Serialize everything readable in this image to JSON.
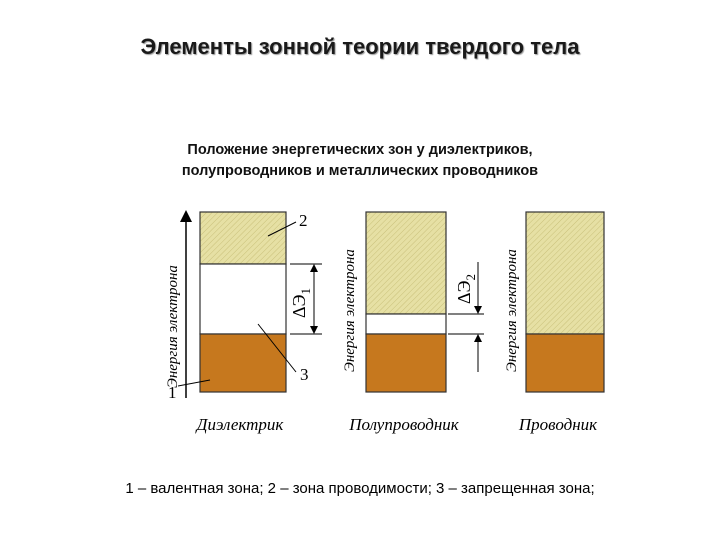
{
  "title": "Элементы зонной теории твердого тела",
  "subtitle_lines": [
    "Положение энергетических зон у диэлектриков,",
    "полупроводников и металлических проводников"
  ],
  "axis_label": "Энергия электрона",
  "diagrams": [
    {
      "caption": "Диэлектрик",
      "gap_label": "ΔЭ",
      "gap_index": "1"
    },
    {
      "caption": "Полупроводник",
      "gap_label": "ΔЭ",
      "gap_index": "2"
    },
    {
      "caption": "Проводник"
    }
  ],
  "callouts": {
    "one": "1",
    "two": "2",
    "three": "3"
  },
  "legend": "1 – валентная зона; 2 – зона проводимости; 3 – запрещенная зона;",
  "colors": {
    "conduction_band": "#e6e0a4",
    "valence_band": "#c6781e",
    "band_outline": "#333333"
  }
}
